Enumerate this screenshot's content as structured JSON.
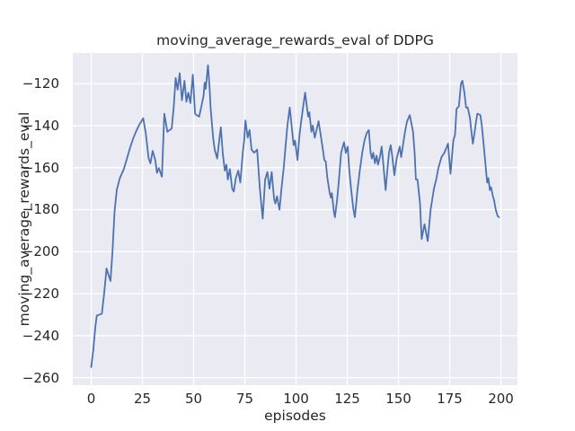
{
  "figure": {
    "background": "#ffffff",
    "plot_background": "#eaeaf2",
    "grid_color": "#ffffff",
    "text_color": "#262626"
  },
  "chart_data": {
    "type": "line",
    "title": "moving_average_rewards_eval of DDPG",
    "xlabel": "episodes",
    "ylabel": "moving_average_rewards_eval",
    "grid": true,
    "legend": null,
    "xlim": [
      -9.0,
      208.1
    ],
    "ylim": [
      -263.6,
      -105.4
    ],
    "x_ticks": [
      0,
      25,
      50,
      75,
      100,
      125,
      150,
      175,
      200
    ],
    "x_tick_labels": [
      "0",
      "25",
      "50",
      "75",
      "100",
      "125",
      "150",
      "175",
      "200"
    ],
    "y_ticks": [
      -260,
      -240,
      -220,
      -200,
      -180,
      -160,
      -140,
      -120
    ],
    "y_tick_labels": [
      "−260",
      "−240",
      "−220",
      "−200",
      "−180",
      "−160",
      "−140",
      "−120"
    ],
    "series": [
      {
        "name": "moving_average_rewards_eval",
        "color": "#4c72b0",
        "points": [
          [
            0,
            -255
          ],
          [
            1,
            -247
          ],
          [
            2,
            -236
          ],
          [
            2.7,
            -230.5
          ],
          [
            4,
            -230
          ],
          [
            5.2,
            -229.5
          ],
          [
            6.3,
            -220
          ],
          [
            7.5,
            -208
          ],
          [
            8.3,
            -210.5
          ],
          [
            9.4,
            -214
          ],
          [
            10.4,
            -200
          ],
          [
            11.4,
            -181
          ],
          [
            12.5,
            -170.5
          ],
          [
            14,
            -165
          ],
          [
            16,
            -160.5
          ],
          [
            17.5,
            -155.5
          ],
          [
            19,
            -150.5
          ],
          [
            20.5,
            -146
          ],
          [
            22,
            -142.5
          ],
          [
            23.5,
            -139.5
          ],
          [
            25.4,
            -136.5
          ],
          [
            26.6,
            -143.6
          ],
          [
            28,
            -155.5
          ],
          [
            28.9,
            -158
          ],
          [
            30,
            -152
          ],
          [
            31.3,
            -156.5
          ],
          [
            32.1,
            -162.5
          ],
          [
            33,
            -160.2
          ],
          [
            34.5,
            -164.3
          ],
          [
            35.7,
            -134.3
          ],
          [
            37.2,
            -142.9
          ],
          [
            39.3,
            -141.4
          ],
          [
            40.3,
            -131
          ],
          [
            41.2,
            -117.3
          ],
          [
            42.2,
            -122.9
          ],
          [
            43.2,
            -115
          ],
          [
            44.3,
            -127.9
          ],
          [
            45.5,
            -118.6
          ],
          [
            46.5,
            -128.6
          ],
          [
            47.4,
            -124.3
          ],
          [
            48.4,
            -129.3
          ],
          [
            49.6,
            -115.7
          ],
          [
            50.7,
            -134.3
          ],
          [
            51.5,
            -135
          ],
          [
            52.7,
            -135.7
          ],
          [
            53.5,
            -132.1
          ],
          [
            54.8,
            -126
          ],
          [
            55.4,
            -119.5
          ],
          [
            55.9,
            -122.5
          ],
          [
            57,
            -111.2
          ],
          [
            57.8,
            -122
          ],
          [
            58.3,
            -131.4
          ],
          [
            58.9,
            -138.6
          ],
          [
            59.5,
            -145.7
          ],
          [
            60.3,
            -151.4
          ],
          [
            61.5,
            -155.7
          ],
          [
            62.3,
            -148.6
          ],
          [
            63.3,
            -140.7
          ],
          [
            64.2,
            -152.9
          ],
          [
            65.2,
            -161.4
          ],
          [
            66,
            -158.6
          ],
          [
            66.7,
            -165.7
          ],
          [
            67.7,
            -160.7
          ],
          [
            68.8,
            -170
          ],
          [
            69.6,
            -171.4
          ],
          [
            70.6,
            -165
          ],
          [
            71.8,
            -161.4
          ],
          [
            72.8,
            -167.1
          ],
          [
            74,
            -152.9
          ],
          [
            74.7,
            -147.1
          ],
          [
            75.3,
            -137.5
          ],
          [
            76.4,
            -145.7
          ],
          [
            77.3,
            -142.1
          ],
          [
            78.3,
            -151.4
          ],
          [
            79.5,
            -152.9
          ],
          [
            81,
            -151.4
          ],
          [
            82.3,
            -170
          ],
          [
            83.7,
            -184.3
          ],
          [
            84.9,
            -165.7
          ],
          [
            86,
            -162.1
          ],
          [
            87,
            -170
          ],
          [
            88.1,
            -162.1
          ],
          [
            89.3,
            -175
          ],
          [
            89.9,
            -177.1
          ],
          [
            90.7,
            -173.6
          ],
          [
            91.9,
            -180
          ],
          [
            92.9,
            -170
          ],
          [
            94,
            -160
          ],
          [
            95.1,
            -147.1
          ],
          [
            95.8,
            -140
          ],
          [
            96.9,
            -131.4
          ],
          [
            98.3,
            -144.3
          ],
          [
            98.8,
            -149.3
          ],
          [
            99.5,
            -147.1
          ],
          [
            100.7,
            -156.4
          ],
          [
            101.7,
            -144.3
          ],
          [
            102.7,
            -136.4
          ],
          [
            104.4,
            -124.3
          ],
          [
            105.9,
            -135.7
          ],
          [
            106.5,
            -133.6
          ],
          [
            107.5,
            -142.9
          ],
          [
            108.2,
            -140
          ],
          [
            109.1,
            -145.7
          ],
          [
            111,
            -137.9
          ],
          [
            112.9,
            -150
          ],
          [
            113.8,
            -156.4
          ],
          [
            114.5,
            -157.1
          ],
          [
            115.2,
            -164.3
          ],
          [
            116.3,
            -171.4
          ],
          [
            117,
            -174.3
          ],
          [
            117.5,
            -172.1
          ],
          [
            118.5,
            -181.4
          ],
          [
            119,
            -183.6
          ],
          [
            120,
            -175.7
          ],
          [
            120.7,
            -168.6
          ],
          [
            122,
            -152.9
          ],
          [
            123.4,
            -147.9
          ],
          [
            124.3,
            -153
          ],
          [
            125.2,
            -150
          ],
          [
            126,
            -161.4
          ],
          [
            127,
            -171.4
          ],
          [
            128,
            -180
          ],
          [
            128.7,
            -183.6
          ],
          [
            130,
            -170.5
          ],
          [
            131.3,
            -160
          ],
          [
            132.3,
            -152.9
          ],
          [
            133.4,
            -147.1
          ],
          [
            134.5,
            -143.6
          ],
          [
            135.5,
            -142.1
          ],
          [
            136.4,
            -152.9
          ],
          [
            137,
            -155.7
          ],
          [
            137.7,
            -152.9
          ],
          [
            138.5,
            -157.9
          ],
          [
            139.3,
            -154.3
          ],
          [
            140,
            -158.6
          ],
          [
            141.1,
            -154.3
          ],
          [
            141.8,
            -150
          ],
          [
            142.5,
            -157.1
          ],
          [
            143.7,
            -170.7
          ],
          [
            144.7,
            -160
          ],
          [
            145.4,
            -152.9
          ],
          [
            146.2,
            -149.3
          ],
          [
            146.9,
            -154.3
          ],
          [
            148,
            -163.6
          ],
          [
            149.1,
            -155.7
          ],
          [
            150.6,
            -150
          ],
          [
            151.3,
            -155
          ],
          [
            152.3,
            -148.6
          ],
          [
            153.2,
            -142.9
          ],
          [
            154.2,
            -137.9
          ],
          [
            155.5,
            -135
          ],
          [
            157.1,
            -142.9
          ],
          [
            157.9,
            -152.9
          ],
          [
            158.5,
            -165.7
          ],
          [
            159.3,
            -165.7
          ],
          [
            160.5,
            -177
          ],
          [
            161.3,
            -194
          ],
          [
            162.7,
            -187
          ],
          [
            164.3,
            -195
          ],
          [
            165.7,
            -180
          ],
          [
            167.3,
            -170
          ],
          [
            168.4,
            -165.7
          ],
          [
            169.5,
            -160
          ],
          [
            171,
            -155
          ],
          [
            172.4,
            -152.9
          ],
          [
            174.2,
            -148.6
          ],
          [
            175.4,
            -162.9
          ],
          [
            176.8,
            -147.1
          ],
          [
            177.6,
            -144.3
          ],
          [
            178.3,
            -132.1
          ],
          [
            179.5,
            -130.7
          ],
          [
            180.5,
            -120
          ],
          [
            181.2,
            -118.6
          ],
          [
            182.2,
            -124.3
          ],
          [
            183,
            -131.4
          ],
          [
            183.8,
            -131.4
          ],
          [
            184.9,
            -136.4
          ],
          [
            185.6,
            -142.9
          ],
          [
            186.3,
            -148.6
          ],
          [
            187,
            -144.3
          ],
          [
            187.8,
            -138.6
          ],
          [
            188.5,
            -134.3
          ],
          [
            190,
            -135
          ],
          [
            190.7,
            -140
          ],
          [
            191.4,
            -147.1
          ],
          [
            192.1,
            -154.3
          ],
          [
            192.9,
            -162.9
          ],
          [
            193.3,
            -167.1
          ],
          [
            193.9,
            -165
          ],
          [
            194.6,
            -170.7
          ],
          [
            195.2,
            -169.3
          ],
          [
            196.1,
            -173.6
          ],
          [
            196.7,
            -175.7
          ],
          [
            197.5,
            -180
          ],
          [
            198.3,
            -182.9
          ],
          [
            199,
            -183.6
          ]
        ]
      }
    ]
  }
}
